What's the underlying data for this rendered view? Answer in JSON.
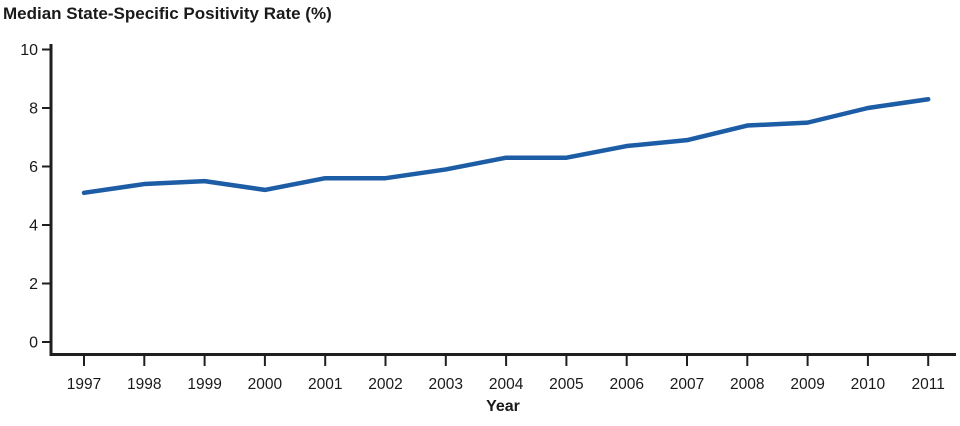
{
  "chart_data": {
    "type": "line",
    "title": "Median State-Specific Positivity Rate (%)",
    "xlabel": "Year",
    "ylabel": "",
    "x": [
      1997,
      1998,
      1999,
      2000,
      2001,
      2002,
      2003,
      2004,
      2005,
      2006,
      2007,
      2008,
      2009,
      2010,
      2011
    ],
    "series": [
      {
        "name": "Median state-specific positivity rate (%)",
        "values": [
          5.1,
          5.4,
          5.5,
          5.2,
          5.6,
          5.6,
          5.9,
          6.3,
          6.3,
          6.7,
          6.9,
          7.4,
          7.5,
          8.0,
          8.3
        ]
      }
    ],
    "ylim": [
      0,
      10
    ],
    "yticks": [
      0,
      2,
      4,
      6,
      8,
      10
    ],
    "grid": false,
    "legend_position": "none",
    "colors": {
      "line": "#1C5DA6",
      "axis": "#1f1f1f",
      "text": "#1a1a1a"
    }
  }
}
